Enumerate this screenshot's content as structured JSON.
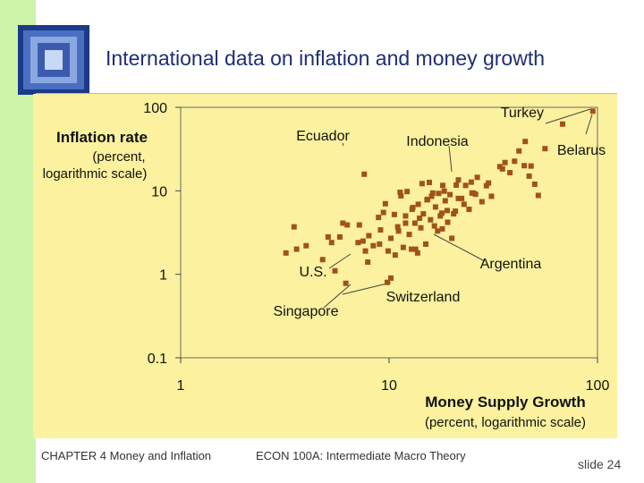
{
  "title": "International data on inflation and money growth",
  "footer": {
    "chapter": "CHAPTER 4   Money and Inflation",
    "course": "ECON 100A: Intermediate Macro Theory",
    "slide": "slide 24"
  },
  "colors": {
    "marker": "#a0521c",
    "plot_bg": "#fbf19e",
    "title": "#1e2f74",
    "left_strip": "#ccf5a8"
  },
  "chart_data": {
    "type": "scatter",
    "x_scale": "log",
    "y_scale": "log",
    "xlim": [
      1,
      100
    ],
    "ylim": [
      0.1,
      100
    ],
    "x_ticks": [
      "1",
      "10",
      "100"
    ],
    "y_ticks": [
      "0.1",
      "1",
      "10",
      "100"
    ],
    "xlabel": "Money Supply Growth",
    "xlabel_sub": "(percent, logarithmic scale)",
    "ylabel": "Inflation rate",
    "ylabel_sub": [
      "(percent,",
      "logarithmic scale)"
    ],
    "grid": false,
    "annotations": [
      {
        "text": "Turkey",
        "x": 91,
        "y": 81
      },
      {
        "text": "Ecuador",
        "x": 8.0,
        "y": 26
      },
      {
        "text": "Indonesia",
        "x": 20.5,
        "y": 16.5
      },
      {
        "text": "Belarus",
        "x": 72,
        "y": 29
      },
      {
        "text": "Argentina",
        "x": 21.5,
        "y": 2.6
      },
      {
        "text": "U.S.",
        "x": 6.2,
        "y": 1.0
      },
      {
        "text": "Switzerland",
        "x": 10.5,
        "y": 0.72
      },
      {
        "text": "Singapore",
        "x": 4.8,
        "y": 0.7
      }
    ],
    "points": [
      [
        95,
        90
      ],
      [
        68,
        63
      ],
      [
        7.6,
        15.8
      ],
      [
        5.3,
        2.4
      ],
      [
        5.5,
        1.1
      ],
      [
        6.2,
        0.78
      ],
      [
        9.8,
        0.8
      ],
      [
        10.2,
        0.9
      ],
      [
        3.2,
        1.8
      ],
      [
        3.6,
        2.0
      ],
      [
        3.5,
        3.7
      ],
      [
        4.0,
        2.2
      ],
      [
        4.8,
        1.5
      ],
      [
        5.1,
        2.8
      ],
      [
        5.8,
        2.8
      ],
      [
        6.0,
        4.1
      ],
      [
        6.3,
        3.9
      ],
      [
        7.2,
        3.9
      ],
      [
        7.5,
        2.5
      ],
      [
        7.7,
        1.9
      ],
      [
        7.9,
        1.4
      ],
      [
        8.0,
        2.9
      ],
      [
        8.4,
        2.2
      ],
      [
        9.1,
        3.4
      ],
      [
        9.4,
        5.5
      ],
      [
        9.6,
        7.0
      ],
      [
        9.9,
        1.9
      ],
      [
        10.2,
        2.7
      ],
      [
        10.7,
        1.7
      ],
      [
        11.1,
        3.3
      ],
      [
        11.4,
        8.7
      ],
      [
        11.7,
        2.1
      ],
      [
        12.0,
        5.0
      ],
      [
        12.5,
        3.0
      ],
      [
        12.9,
        6.0
      ],
      [
        13.3,
        4.1
      ],
      [
        13.7,
        1.8
      ],
      [
        14.2,
        3.6
      ],
      [
        14.6,
        5.3
      ],
      [
        15.0,
        2.3
      ],
      [
        15.3,
        7.9
      ],
      [
        15.8,
        4.5
      ],
      [
        16.2,
        9.4
      ],
      [
        16.7,
        6.4
      ],
      [
        17.1,
        3.3
      ],
      [
        17.6,
        5.0
      ],
      [
        18.1,
        11.6
      ],
      [
        18.6,
        7.6
      ],
      [
        19.1,
        4.2
      ],
      [
        19.6,
        9.0
      ],
      [
        20.0,
        2.7
      ],
      [
        20.8,
        5.7
      ],
      [
        21.5,
        13.5
      ],
      [
        22.3,
        8.1
      ],
      [
        23.3,
        11.6
      ],
      [
        24.2,
        6.0
      ],
      [
        25.4,
        9.4
      ],
      [
        26.5,
        14.5
      ],
      [
        27.9,
        7.4
      ],
      [
        29.3,
        11.5
      ],
      [
        31.0,
        8.6
      ],
      [
        34.0,
        19.5
      ],
      [
        36.0,
        21.8
      ],
      [
        38.0,
        16.5
      ],
      [
        40.0,
        22.6
      ],
      [
        42.0,
        30.0
      ],
      [
        45.0,
        39.0
      ],
      [
        48.0,
        19.8
      ],
      [
        50.0,
        12.0
      ],
      [
        52.0,
        8.8
      ],
      [
        56.0,
        32.0
      ],
      [
        11.3,
        9.6
      ],
      [
        12.2,
        9.8
      ],
      [
        13.8,
        6.9
      ],
      [
        14.4,
        12.2
      ],
      [
        15.6,
        12.6
      ],
      [
        16.0,
        8.6
      ],
      [
        17.3,
        9.3
      ],
      [
        18.4,
        9.9
      ],
      [
        21.0,
        11.7
      ],
      [
        22.9,
        6.9
      ],
      [
        26.0,
        9.1
      ],
      [
        11.0,
        3.7
      ],
      [
        12.0,
        4.1
      ],
      [
        14.0,
        4.7
      ],
      [
        16.5,
        3.8
      ],
      [
        18.0,
        3.5
      ],
      [
        19.0,
        5.8
      ],
      [
        21.5,
        8.1
      ],
      [
        25.0,
        9.4
      ],
      [
        9.0,
        2.3
      ],
      [
        7.1,
        2.4
      ],
      [
        8.9,
        4.8
      ],
      [
        10.6,
        5.2
      ],
      [
        13.0,
        6.3
      ],
      [
        15.2,
        7.8
      ],
      [
        17.9,
        5.4
      ],
      [
        20.4,
        5.3
      ],
      [
        24.8,
        12.7
      ],
      [
        30.0,
        12.4
      ],
      [
        35.0,
        18.3
      ],
      [
        44.5,
        20.0
      ],
      [
        47.0,
        15.0
      ],
      [
        12.8,
        2.0
      ],
      [
        13.4,
        2.0
      ]
    ]
  }
}
